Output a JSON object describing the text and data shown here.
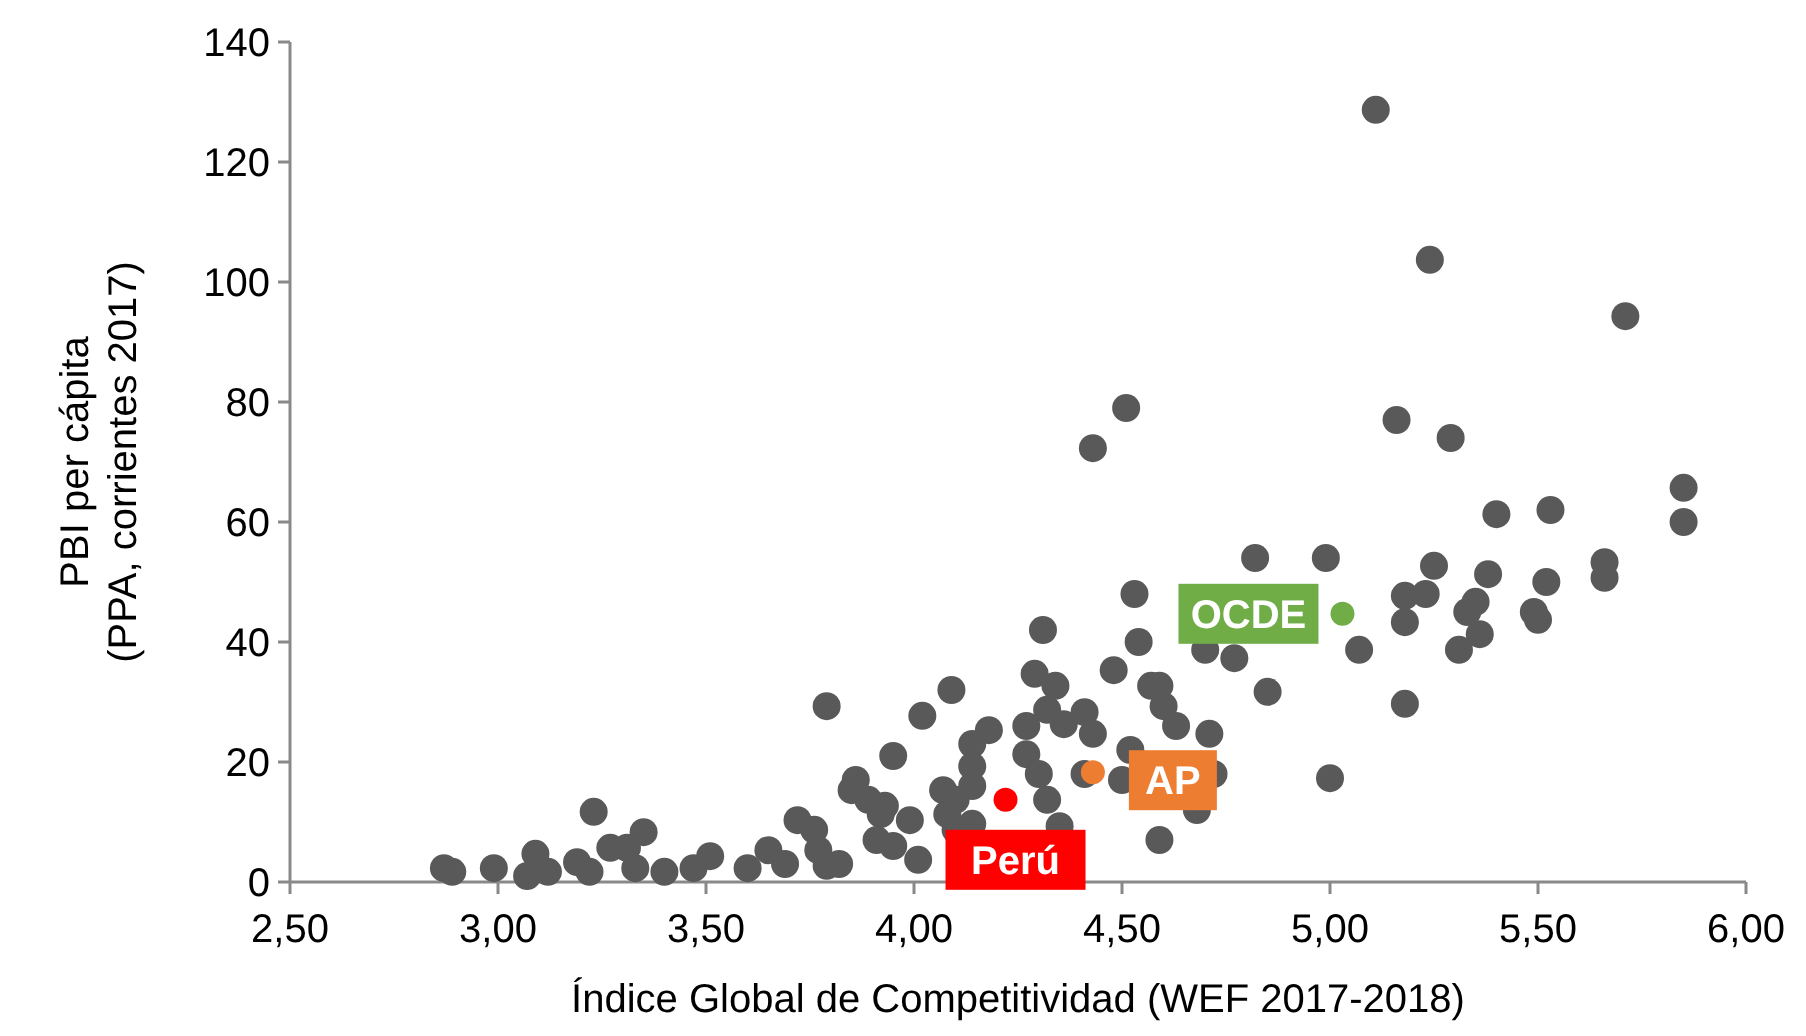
{
  "chart_data": {
    "type": "scatter",
    "xlabel": "Índice Global de Competitividad (WEF 2017-2018)",
    "ylabel": "PBI per cápita\n(PPA, corrientes 2017)",
    "xlim": [
      2.5,
      6
    ],
    "ylim": [
      0,
      140
    ],
    "xticks": [
      {
        "value": 2.5,
        "label": "2,50"
      },
      {
        "value": 3,
        "label": "3,00"
      },
      {
        "value": 3.5,
        "label": "3,50"
      },
      {
        "value": 4,
        "label": "4,00"
      },
      {
        "value": 4.5,
        "label": "4,50"
      },
      {
        "value": 5,
        "label": "5,00"
      },
      {
        "value": 5.5,
        "label": "5,50"
      },
      {
        "value": 6,
        "label": "6,00"
      }
    ],
    "yticks": [
      0,
      20,
      40,
      60,
      80,
      100,
      120,
      140
    ],
    "grid": false,
    "marker": "circle",
    "series": [
      {
        "color": "#595959",
        "x": [
          2.87,
          2.89,
          2.99,
          3.09,
          3.07,
          3.12,
          3.19,
          3.22,
          3.23,
          3.27,
          3.31,
          3.35,
          3.33,
          3.4,
          3.47,
          3.51,
          3.6,
          3.65,
          3.69,
          3.72,
          3.76,
          3.77,
          3.79,
          3.82,
          3.79,
          3.85,
          3.86,
          3.89,
          3.92,
          3.91,
          3.95,
          3.99,
          4.01,
          3.95,
          4.02,
          4.09,
          4.07,
          4.1,
          4.14,
          4.18,
          4.14,
          4.27,
          4.27,
          4.3,
          4.31,
          4.29,
          4.34,
          4.32,
          4.36,
          4.32,
          4.1,
          4.14,
          4.51,
          4.43,
          4.82,
          4.99,
          4.53,
          4.54,
          5.07,
          4.7,
          4.77,
          4.48,
          4.57,
          4.59,
          4.85,
          4.6,
          4.63,
          4.71,
          4.41,
          4.43,
          4.52,
          4.72,
          4.68,
          4.59,
          5.0,
          4.41,
          4.5,
          3.93,
          4.08,
          4.35,
          4.14,
          5.11,
          5.24,
          5.71,
          5.16,
          5.29,
          5.85,
          5.85,
          5.4,
          5.53,
          5.25,
          5.38,
          5.66,
          5.66,
          5.52,
          5.18,
          5.23,
          5.18,
          5.33,
          5.35,
          5.49,
          5.5,
          5.36,
          5.31,
          5.18
        ],
        "values": [
          2.3,
          1.7,
          2.3,
          4.7,
          1,
          1.7,
          3.3,
          1.7,
          11.7,
          5.7,
          5.7,
          8.3,
          2.3,
          1.7,
          2.3,
          4.3,
          2.3,
          5.3,
          3,
          10.3,
          8.7,
          5.3,
          2.7,
          3,
          29.3,
          15.3,
          17,
          13.7,
          11.3,
          7,
          6,
          10.3,
          3.7,
          21,
          27.7,
          32,
          15.3,
          13.7,
          23,
          25.3,
          19.3,
          26,
          21.3,
          18,
          42,
          34.7,
          32.7,
          28.7,
          26.3,
          13.7,
          8.7,
          9.7,
          79,
          72.3,
          54,
          54,
          48,
          40,
          38.7,
          38.7,
          37.3,
          35.3,
          32.7,
          32.7,
          31.7,
          29.3,
          26,
          24.7,
          28.3,
          24.7,
          22,
          18,
          12,
          7,
          17.3,
          18,
          17,
          12.7,
          11.3,
          9.3,
          16,
          128.7,
          103.7,
          94.3,
          77,
          74,
          65.7,
          60,
          61.3,
          62,
          52.7,
          51.3,
          53.3,
          50.7,
          50,
          47.7,
          48,
          43.3,
          45,
          46.7,
          45,
          43.7,
          41.3,
          38.7,
          29.7
        ]
      },
      {
        "name": "Perú",
        "color": "#ff0000",
        "x": [
          4.22
        ],
        "values": [
          13.7
        ]
      },
      {
        "name": "AP",
        "color": "#ed7d31",
        "x": [
          4.43
        ],
        "values": [
          18.3
        ]
      },
      {
        "name": "OCDE",
        "color": "#70ad47",
        "x": [
          5.03
        ],
        "values": [
          44.7
        ]
      }
    ]
  }
}
